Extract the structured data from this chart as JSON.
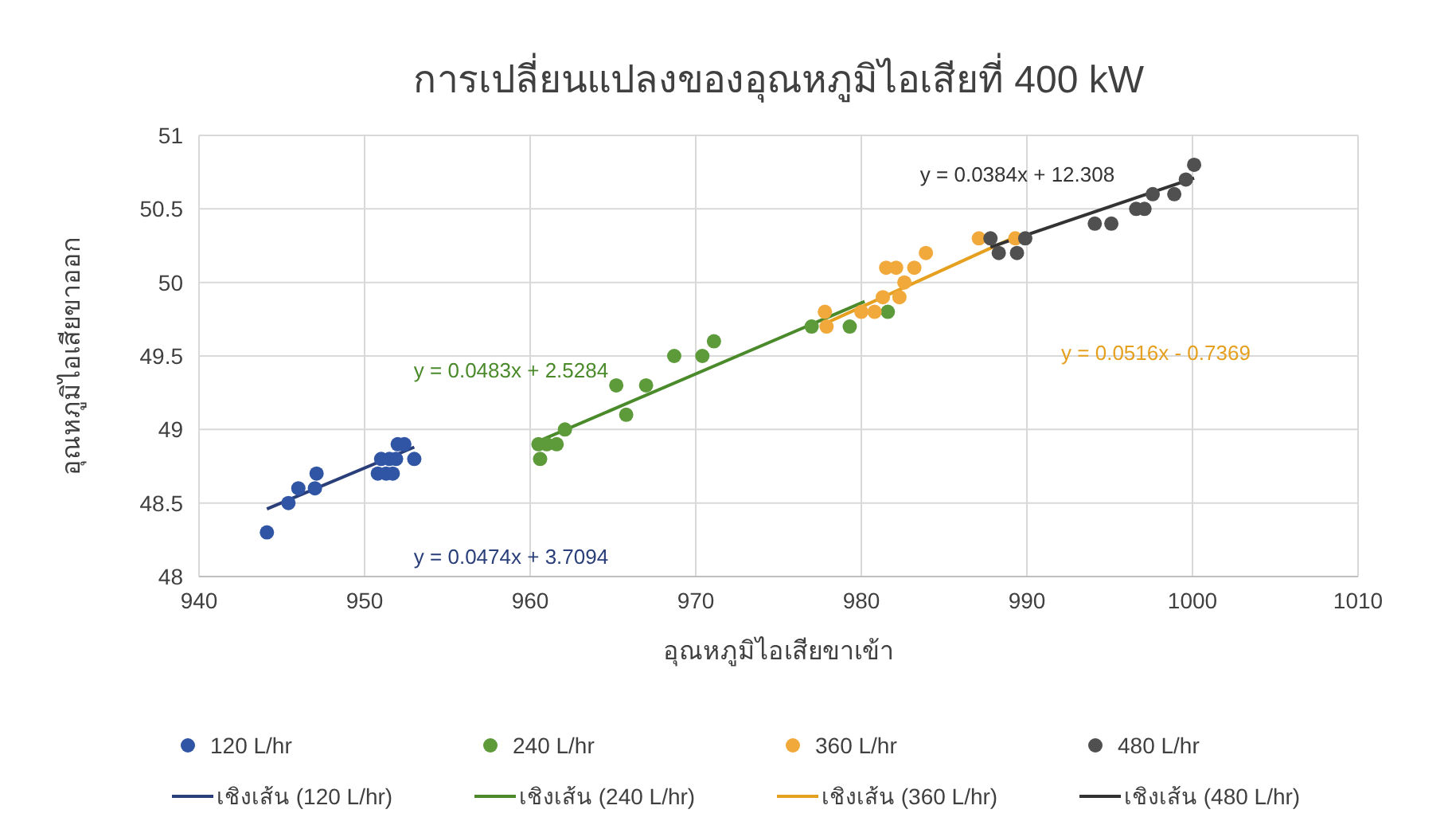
{
  "chart_data": {
    "type": "scatter",
    "title": "การเปลี่ยนแปลงของอุณหภูมิไอเสียที่ 400 kW",
    "xlabel": "อุณหภูมิไอเสียขาเข้า",
    "ylabel": "อุณหภูมิไอเสียขาออก",
    "xlim": [
      940,
      1010
    ],
    "xticks": [
      940,
      950,
      960,
      970,
      980,
      990,
      1000,
      1010
    ],
    "ylim": [
      48,
      51
    ],
    "yticks": [
      48,
      48.5,
      49,
      49.5,
      50,
      50.5,
      51
    ],
    "grid": true,
    "legend": "bottom",
    "series": [
      {
        "name": "120 L/hr",
        "color": "#2f55a4",
        "marker": "circle",
        "x": [
          944.1,
          945.4,
          946,
          947,
          947.1,
          950.8,
          951,
          951.3,
          951.5,
          951.7,
          951.9,
          952,
          952.4,
          953
        ],
        "values": [
          48.3,
          48.5,
          48.6,
          48.6,
          48.7,
          48.7,
          48.8,
          48.7,
          48.8,
          48.7,
          48.8,
          48.9,
          48.9,
          48.8
        ]
      },
      {
        "name": "240 L/hr",
        "color": "#5c9a3a",
        "marker": "circle",
        "x": [
          960.5,
          960.6,
          961,
          961.6,
          962.1,
          965.2,
          965.8,
          967,
          968.7,
          970.4,
          971.1,
          977,
          979.3,
          981.6
        ],
        "values": [
          48.9,
          48.8,
          48.9,
          48.9,
          49,
          49.3,
          49.1,
          49.3,
          49.5,
          49.5,
          49.6,
          49.7,
          49.7,
          49.8
        ]
      },
      {
        "name": "360 L/hr",
        "color": "#f2a93b",
        "marker": "circle",
        "x": [
          977.8,
          977.9,
          980,
          980.8,
          981.3,
          981.5,
          982.1,
          982.3,
          982.6,
          983.2,
          983.9,
          987.1,
          989.3
        ],
        "values": [
          49.8,
          49.7,
          49.8,
          49.8,
          49.9,
          50.1,
          50.1,
          49.9,
          50,
          50.1,
          50.2,
          50.3,
          50.3
        ]
      },
      {
        "name": "480 L/hr",
        "color": "#505050",
        "marker": "circle",
        "x": [
          987.8,
          988.3,
          989.4,
          989.9,
          994.1,
          995.1,
          996.6,
          997.1,
          997.6,
          998.9,
          999.6,
          1000.1
        ],
        "values": [
          50.3,
          50.2,
          50.2,
          50.3,
          50.4,
          50.4,
          50.5,
          50.5,
          50.6,
          50.6,
          50.7,
          50.8
        ]
      },
      {
        "name": "เชิงเส้น (120 L/hr)",
        "type": "line",
        "color": "#2a3f7a",
        "x": [
          944.1,
          953
        ],
        "values": [
          48.46,
          48.88
        ]
      },
      {
        "name": "เชิงเส้น (240 L/hr)",
        "type": "line",
        "color": "#4a8a2a",
        "x": [
          960.5,
          980.2
        ],
        "values": [
          48.92,
          49.87
        ]
      },
      {
        "name": "เชิงเส้น (360 L/hr)",
        "type": "line",
        "color": "#e6a020",
        "x": [
          977.8,
          989.3
        ],
        "values": [
          49.72,
          50.31
        ]
      },
      {
        "name": "เชิงเส้น (480 L/hr)",
        "type": "line",
        "color": "#333333",
        "x": [
          987.8,
          1000.1
        ],
        "values": [
          50.24,
          50.71
        ]
      }
    ],
    "annotations": [
      "y = 0.0474x + 3.7094",
      "y = 0.0483x + 2.5284",
      "y = 0.0516x - 0.7369",
      "y = 0.0384x + 12.308"
    ]
  }
}
